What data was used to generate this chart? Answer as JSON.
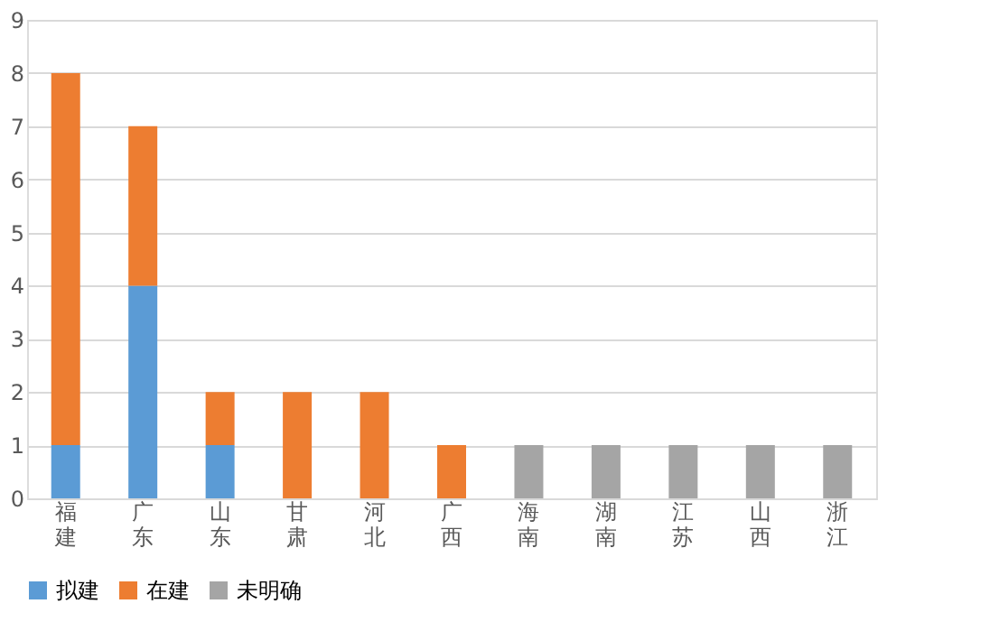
{
  "chart_data": {
    "type": "bar",
    "stacked": true,
    "categories": [
      "福建",
      "广东",
      "山东",
      "甘肃",
      "河北",
      "广西",
      "海南",
      "湖南",
      "江苏",
      "山西",
      "浙江"
    ],
    "series": [
      {
        "name": "拟建",
        "color": "#5b9bd5",
        "values": [
          1,
          4,
          1,
          0,
          0,
          0,
          0,
          0,
          0,
          0,
          0
        ]
      },
      {
        "name": "在建",
        "color": "#ed7d31",
        "values": [
          7,
          3,
          1,
          2,
          2,
          1,
          0,
          0,
          0,
          0,
          0
        ]
      },
      {
        "name": "未明确",
        "color": "#a5a5a5",
        "values": [
          0,
          0,
          0,
          0,
          0,
          0,
          1,
          1,
          1,
          1,
          1
        ]
      }
    ],
    "ylim": [
      0,
      9
    ],
    "yticks": [
      0,
      1,
      2,
      3,
      4,
      5,
      6,
      7,
      8,
      9
    ],
    "grid": "y",
    "legend": "bottom"
  }
}
